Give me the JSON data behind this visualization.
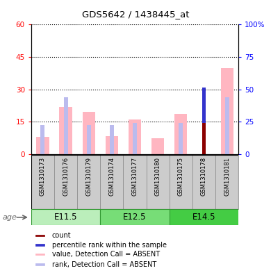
{
  "title": "GDS5642 / 1438445_at",
  "samples": [
    "GSM1310173",
    "GSM1310176",
    "GSM1310179",
    "GSM1310174",
    "GSM1310177",
    "GSM1310180",
    "GSM1310175",
    "GSM1310178",
    "GSM1310181"
  ],
  "groups": [
    {
      "label": "E11.5",
      "indices": [
        0,
        1,
        2
      ]
    },
    {
      "label": "E12.5",
      "indices": [
        3,
        4,
        5
      ]
    },
    {
      "label": "E14.5",
      "indices": [
        6,
        7,
        8
      ]
    }
  ],
  "value_absent": [
    8.0,
    22.0,
    19.5,
    8.5,
    16.0,
    7.5,
    18.5,
    0.0,
    40.0
  ],
  "rank_absent": [
    13.5,
    26.5,
    13.5,
    13.5,
    14.5,
    0.0,
    14.5,
    0.0,
    26.5
  ],
  "count_val": [
    0.0,
    0.0,
    0.0,
    0.0,
    0.0,
    0.0,
    0.0,
    31.0,
    0.0
  ],
  "pct_rank_val": [
    0.0,
    0.0,
    0.0,
    0.0,
    0.0,
    0.0,
    0.0,
    16.5,
    0.0
  ],
  "ylim_left": [
    0,
    60
  ],
  "ylim_right": [
    0,
    100
  ],
  "yticks_left": [
    0,
    15,
    30,
    45,
    60
  ],
  "yticks_right": [
    0,
    25,
    50,
    75,
    100
  ],
  "color_count": "#8B0000",
  "color_pct_rank": "#3333CC",
  "color_value_absent": "#FFB6C1",
  "color_rank_absent": "#BBBBEE",
  "group_colors": [
    "#BBEEBB",
    "#77DD77",
    "#44CC44"
  ],
  "group_edge_color": "#339933",
  "sample_box_color": "#CCCCCC",
  "sample_box_edge": "#888888"
}
